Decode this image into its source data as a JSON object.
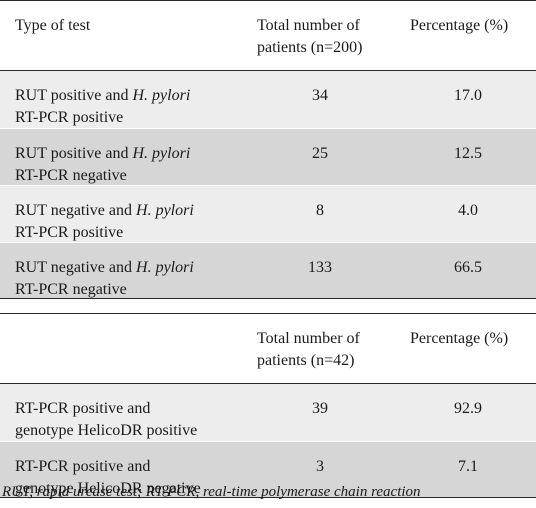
{
  "table1": {
    "header": {
      "col1": "Type of test",
      "col2_line1": "Total number of",
      "col2_line2": "patients (n=200)",
      "col3": "Percentage (%)"
    },
    "rows": [
      {
        "line1_prefix": "RUT positive and ",
        "line1_italic": "H. pylori",
        "line2": "RT-PCR positive",
        "count": "34",
        "pct": "17.0"
      },
      {
        "line1_prefix": "RUT positive and ",
        "line1_italic": "H. pylori",
        "line2": "RT-PCR negative",
        "count": "25",
        "pct": "12.5"
      },
      {
        "line1_prefix": "RUT negative and ",
        "line1_italic": "H. pylori",
        "line2": "RT-PCR positive",
        "count": "8",
        "pct": "4.0"
      },
      {
        "line1_prefix": "RUT negative and ",
        "line1_italic": "H. pylori",
        "line2": "RT-PCR negative",
        "count": "133",
        "pct": "66.5"
      }
    ]
  },
  "table2": {
    "header": {
      "col2_line1": "Total number of",
      "col2_line2": "patients (n=42)",
      "col3": "Percentage (%)"
    },
    "rows": [
      {
        "line1": "RT-PCR positive and",
        "line2": "genotype HelicoDR positive",
        "count": "39",
        "pct": "92.9"
      },
      {
        "line1": "RT-PCR positive and",
        "line2": "genotype HelicoDR negative",
        "count": "3",
        "pct": "7.1"
      }
    ]
  },
  "footnote": "RUT, rapid urease test; RT-PCR, real-time polymerase chain reaction"
}
